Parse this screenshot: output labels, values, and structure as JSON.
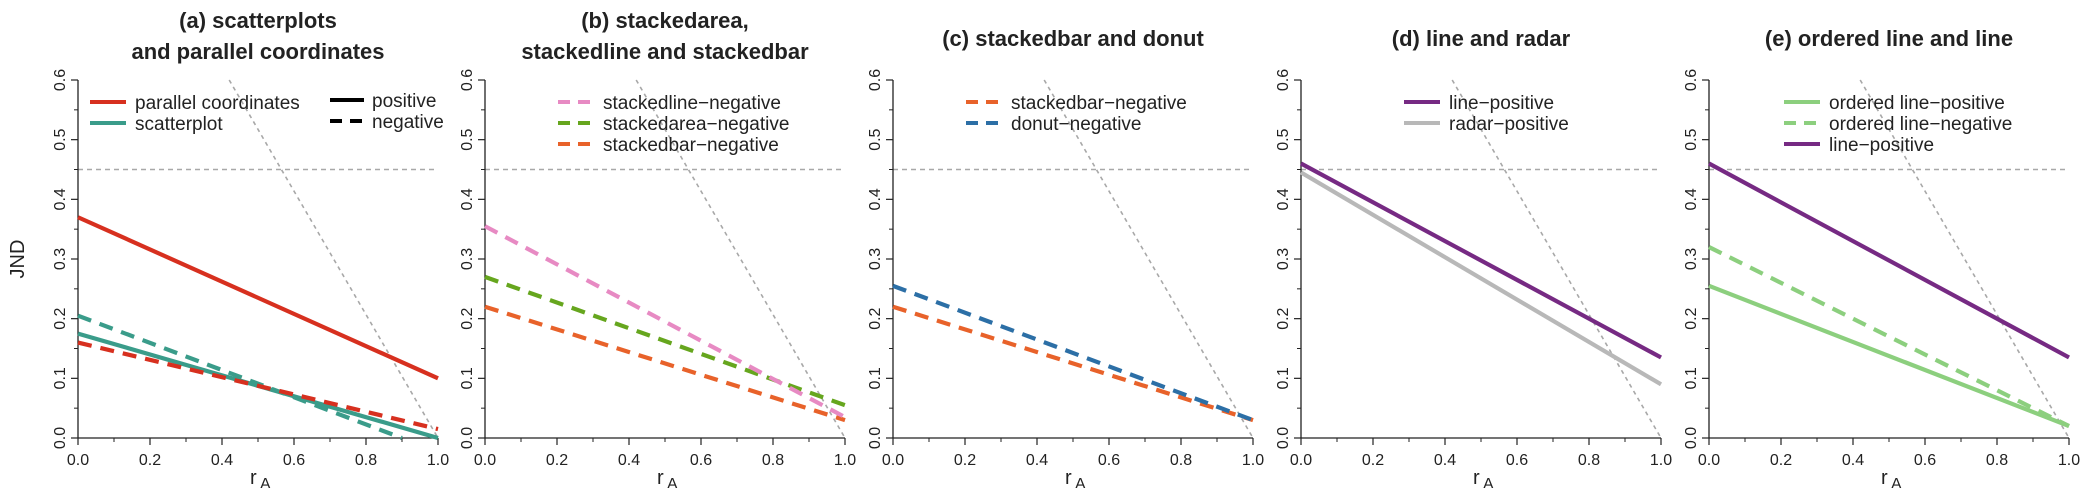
{
  "chart_data": [
    {
      "type": "line",
      "panel": "a",
      "title_lines": [
        "(a) scatterplots",
        "and parallel coordinates"
      ],
      "ylabel": "JND",
      "xlabel": "r",
      "xlabel_sub": "A",
      "xlim": [
        0,
        1
      ],
      "ylim": [
        0,
        0.6
      ],
      "xticks": [
        "0.0",
        "0.2",
        "0.4",
        "0.6",
        "0.8",
        "1.0"
      ],
      "yticks": [
        "0.0",
        "0.1",
        "0.2",
        "0.3",
        "0.4",
        "0.5",
        "0.6"
      ],
      "reference": {
        "hline_y": 0.45,
        "diag": [
          [
            0.42,
            0.6
          ],
          [
            1.0,
            0.0
          ]
        ]
      },
      "legend": [
        {
          "label": "parallel coordinates",
          "color": "#d7301f",
          "dash": false
        },
        {
          "label": "scatterplot",
          "color": "#3a9c8a",
          "dash": false
        }
      ],
      "legend2": [
        {
          "label": "positive",
          "dash": false
        },
        {
          "label": "negative",
          "dash": true
        }
      ],
      "series": [
        {
          "color": "#d7301f",
          "dash": false,
          "x": [
            0,
            1
          ],
          "y": [
            0.37,
            0.1
          ]
        },
        {
          "color": "#3a9c8a",
          "dash": false,
          "x": [
            0,
            1
          ],
          "y": [
            0.175,
            0.0
          ]
        },
        {
          "color": "#3a9c8a",
          "dash": true,
          "x": [
            0,
            0.9
          ],
          "y": [
            0.205,
            0.0
          ]
        },
        {
          "color": "#d7301f",
          "dash": true,
          "x": [
            0,
            1
          ],
          "y": [
            0.16,
            0.015
          ]
        }
      ]
    },
    {
      "type": "line",
      "panel": "b",
      "title_lines": [
        "(b) stackedarea,",
        "stackedline and stackedbar"
      ],
      "xlabel": "r",
      "xlabel_sub": "A",
      "xlim": [
        0,
        1
      ],
      "ylim": [
        0,
        0.6
      ],
      "xticks": [
        "0.0",
        "0.2",
        "0.4",
        "0.6",
        "0.8",
        "1.0"
      ],
      "yticks": [
        "0.0",
        "0.1",
        "0.2",
        "0.3",
        "0.4",
        "0.5",
        "0.6"
      ],
      "reference": {
        "hline_y": 0.45,
        "diag": [
          [
            0.42,
            0.6
          ],
          [
            1.0,
            0.0
          ]
        ]
      },
      "legend": [
        {
          "label": "stackedline−negative",
          "color": "#e78ac3",
          "dash": true
        },
        {
          "label": "stackedarea−negative",
          "color": "#66a61e",
          "dash": true
        },
        {
          "label": "stackedbar−negative",
          "color": "#e8622a",
          "dash": true
        }
      ],
      "series": [
        {
          "color": "#e8622a",
          "dash": true,
          "x": [
            0,
            1
          ],
          "y": [
            0.22,
            0.03
          ]
        },
        {
          "color": "#66a61e",
          "dash": true,
          "x": [
            0,
            1
          ],
          "y": [
            0.27,
            0.055
          ]
        },
        {
          "color": "#e78ac3",
          "dash": true,
          "x": [
            0,
            1
          ],
          "y": [
            0.355,
            0.035
          ]
        }
      ]
    },
    {
      "type": "line",
      "panel": "c",
      "title_lines": [
        "(c) stackedbar and donut"
      ],
      "xlabel": "r",
      "xlabel_sub": "A",
      "xlim": [
        0,
        1
      ],
      "ylim": [
        0,
        0.6
      ],
      "xticks": [
        "0.0",
        "0.2",
        "0.4",
        "0.6",
        "0.8",
        "1.0"
      ],
      "yticks": [
        "0.0",
        "0.1",
        "0.2",
        "0.3",
        "0.4",
        "0.5",
        "0.6"
      ],
      "reference": {
        "hline_y": 0.45,
        "diag": [
          [
            0.42,
            0.6
          ],
          [
            1.0,
            0.0
          ]
        ]
      },
      "legend": [
        {
          "label": "stackedbar−negative",
          "color": "#e8622a",
          "dash": true
        },
        {
          "label": "donut−negative",
          "color": "#2c6fa6",
          "dash": true
        }
      ],
      "series": [
        {
          "color": "#e8622a",
          "dash": true,
          "x": [
            0,
            1
          ],
          "y": [
            0.22,
            0.03
          ]
        },
        {
          "color": "#2c6fa6",
          "dash": true,
          "x": [
            0,
            1
          ],
          "y": [
            0.255,
            0.03
          ]
        }
      ]
    },
    {
      "type": "line",
      "panel": "d",
      "title_lines": [
        "(d) line and radar"
      ],
      "xlabel": "r",
      "xlabel_sub": "A",
      "xlim": [
        0,
        1
      ],
      "ylim": [
        0,
        0.6
      ],
      "xticks": [
        "0.0",
        "0.2",
        "0.4",
        "0.6",
        "0.8",
        "1.0"
      ],
      "yticks": [
        "0.0",
        "0.1",
        "0.2",
        "0.3",
        "0.4",
        "0.5",
        "0.6"
      ],
      "reference": {
        "hline_y": 0.45,
        "diag": [
          [
            0.42,
            0.6
          ],
          [
            1.0,
            0.0
          ]
        ]
      },
      "legend": [
        {
          "label": "line−positive",
          "color": "#762a83",
          "dash": false
        },
        {
          "label": "radar−positive",
          "color": "#b8b8b8",
          "dash": false
        }
      ],
      "series": [
        {
          "color": "#b8b8b8",
          "dash": false,
          "x": [
            0,
            1
          ],
          "y": [
            0.445,
            0.09
          ]
        },
        {
          "color": "#762a83",
          "dash": false,
          "x": [
            0,
            1
          ],
          "y": [
            0.46,
            0.135
          ]
        }
      ]
    },
    {
      "type": "line",
      "panel": "e",
      "title_lines": [
        "(e) ordered line and line"
      ],
      "xlabel": "r",
      "xlabel_sub": "A",
      "xlim": [
        0,
        1
      ],
      "ylim": [
        0,
        0.6
      ],
      "xticks": [
        "0.0",
        "0.2",
        "0.4",
        "0.6",
        "0.8",
        "1.0"
      ],
      "yticks": [
        "0.0",
        "0.1",
        "0.2",
        "0.3",
        "0.4",
        "0.5",
        "0.6"
      ],
      "reference": {
        "hline_y": 0.45,
        "diag": [
          [
            0.42,
            0.6
          ],
          [
            1.0,
            0.0
          ]
        ]
      },
      "legend": [
        {
          "label": "ordered line−positive",
          "color": "#8ccf7e",
          "dash": false
        },
        {
          "label": "ordered line−negative",
          "color": "#8ccf7e",
          "dash": true
        },
        {
          "label": "line−positive",
          "color": "#762a83",
          "dash": false
        }
      ],
      "series": [
        {
          "color": "#8ccf7e",
          "dash": false,
          "x": [
            0,
            1
          ],
          "y": [
            0.255,
            0.02
          ]
        },
        {
          "color": "#8ccf7e",
          "dash": true,
          "x": [
            0,
            1
          ],
          "y": [
            0.32,
            0.02
          ]
        },
        {
          "color": "#762a83",
          "dash": false,
          "x": [
            0,
            1
          ],
          "y": [
            0.46,
            0.135
          ]
        }
      ]
    }
  ]
}
